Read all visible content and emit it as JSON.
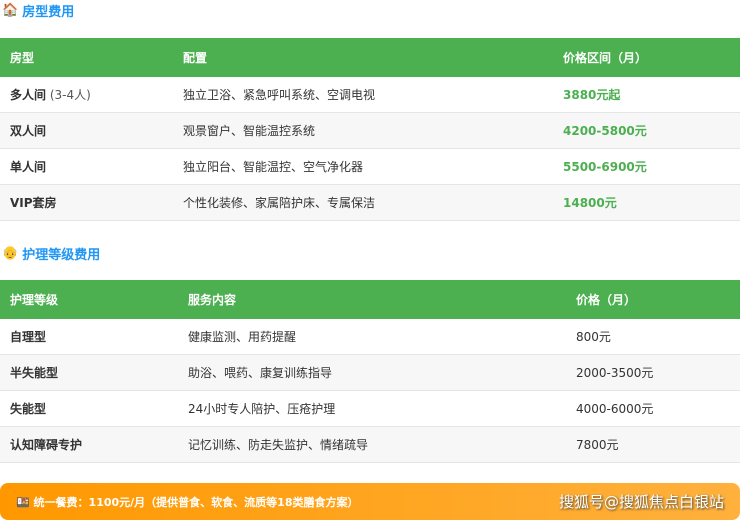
{
  "room": {
    "icon": "house-icon",
    "title": "房型费用",
    "headers": [
      "房型",
      "配置",
      "价格区间（月）"
    ],
    "rows": [
      {
        "name": "多人间",
        "note": "(3-4人)",
        "config": "独立卫浴、紧急呼叫系统、空调电视",
        "price": "3880元起"
      },
      {
        "name": "双人间",
        "note": "",
        "config": "观景窗户、智能温控系统",
        "price": "4200-5800元"
      },
      {
        "name": "单人间",
        "note": "",
        "config": "独立阳台、智能温控、空气净化器",
        "price": "5500-6900元"
      },
      {
        "name": "VIP套房",
        "note": "",
        "config": "个性化装修、家属陪护床、专属保洁",
        "price": "14800元"
      }
    ]
  },
  "care": {
    "icon": "elder-face-icon",
    "title": "护理等级费用",
    "headers": [
      "护理等级",
      "服务内容",
      "价格（月）"
    ],
    "rows": [
      {
        "name": "自理型",
        "service": "健康监测、用药提醒",
        "price": "800元"
      },
      {
        "name": "半失能型",
        "service": "助浴、喂药、康复训练指导",
        "price": "2000-3500元"
      },
      {
        "name": "失能型",
        "service": "24小时专人陪护、压疮护理",
        "price": "4000-6000元"
      },
      {
        "name": "认知障碍专护",
        "service": "记忆训练、防走失监护、情绪疏导",
        "price": "7800元"
      }
    ]
  },
  "banner": {
    "icon": "meal-icon",
    "text": "统一餐费：1100元/月（提供普食、软食、流质等18类膳食方案）",
    "watermark": "搜狐号@搜狐焦点白银站"
  },
  "colors": {
    "header": "#4caf50",
    "title": "#2196f3",
    "banner": "#ff9800"
  }
}
